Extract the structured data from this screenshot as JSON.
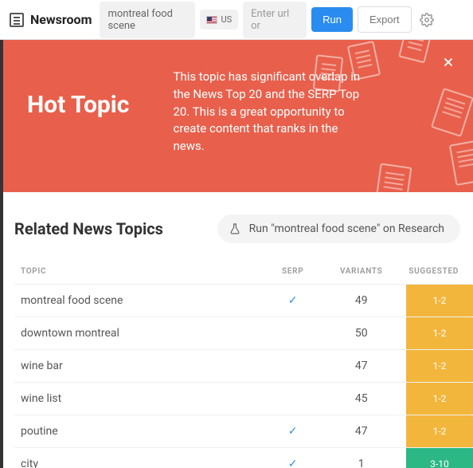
{
  "topbar": {
    "brand": "Newsroom",
    "search_value": "montreal food scene",
    "locale_label": "US",
    "url_placeholder": "Enter url or",
    "run_label": "Run",
    "export_label": "Export"
  },
  "hero": {
    "title": "Hot Topic",
    "description": "This topic has significant overlap in the News Top 20 and the SERP Top 20. This is a great opportunity to create content that ranks in the news.",
    "background_color": "#e8604c",
    "text_color": "#ffffff"
  },
  "related": {
    "title": "Related News Topics",
    "research_label": "Run \"montreal food scene\" on Research",
    "columns": {
      "topic": "TOPIC",
      "serp": "SERP",
      "variants": "VARIANTS",
      "suggested": "SUGGESTED"
    },
    "rows": [
      {
        "topic": "montreal food scene",
        "serp": true,
        "variants": 49,
        "suggested": "1-2",
        "suggested_color": "#f3b63c"
      },
      {
        "topic": "downtown montreal",
        "serp": false,
        "variants": 50,
        "suggested": "1-2",
        "suggested_color": "#f3b63c"
      },
      {
        "topic": "wine bar",
        "serp": false,
        "variants": 47,
        "suggested": "1-2",
        "suggested_color": "#f3b63c"
      },
      {
        "topic": "wine list",
        "serp": false,
        "variants": 45,
        "suggested": "1-2",
        "suggested_color": "#f3b63c"
      },
      {
        "topic": "poutine",
        "serp": true,
        "variants": 47,
        "suggested": "1-2",
        "suggested_color": "#f3b63c"
      },
      {
        "topic": "city",
        "serp": true,
        "variants": 1,
        "suggested": "3-10",
        "suggested_color": "#2bb885"
      }
    ]
  },
  "colors": {
    "primary_button": "#2a8cf0",
    "check_color": "#3a8de0"
  }
}
